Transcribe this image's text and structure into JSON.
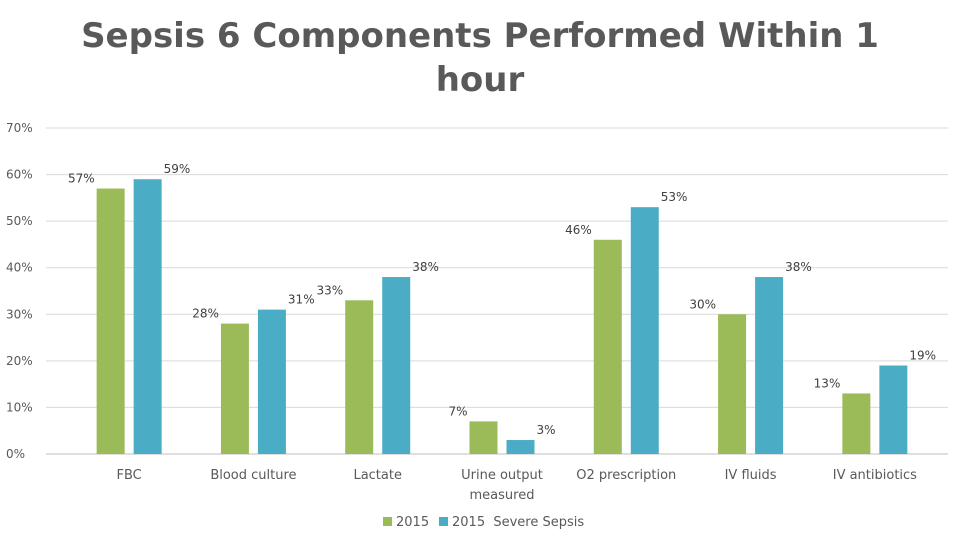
{
  "chart_data": {
    "type": "bar",
    "title": "Sepsis 6 Components Performed Within 1 hour",
    "categories": [
      [
        "FBC"
      ],
      [
        "Blood culture"
      ],
      [
        "Lactate"
      ],
      [
        "Urine output",
        "measured"
      ],
      [
        "O2 prescription"
      ],
      [
        "IV fluids"
      ],
      [
        "IV antibiotics"
      ]
    ],
    "series": [
      {
        "name": "2015",
        "values": [
          57,
          28,
          33,
          7,
          46,
          30,
          13
        ],
        "labels": [
          "57%",
          "28%",
          "33%",
          "7%",
          "46%",
          "30%",
          "13%"
        ],
        "color": "#9bbb59"
      },
      {
        "name": "2015  Severe Sepsis",
        "values": [
          59,
          31,
          38,
          3,
          53,
          38,
          19
        ],
        "labels": [
          "59%",
          "31%",
          "38%",
          "3%",
          "53%",
          "38%",
          "19%"
        ],
        "color": "#4bacc6"
      }
    ],
    "y_ticks": [
      "0%",
      "10%",
      "20%",
      "30%",
      "40%",
      "50%",
      "60%",
      "70%"
    ],
    "ylim": [
      0,
      70
    ],
    "grid": true,
    "legend_position": "bottom"
  }
}
